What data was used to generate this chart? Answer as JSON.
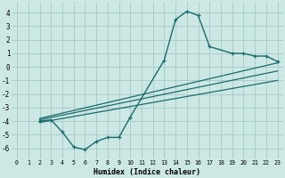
{
  "xlabel": "Humidex (Indice chaleur)",
  "bg_color": "#cce8e4",
  "grid_color": "#aaceca",
  "line_color": "#1a6b6b",
  "xlim": [
    -0.5,
    23.5
  ],
  "ylim": [
    -6.8,
    4.8
  ],
  "xticks": [
    0,
    1,
    2,
    3,
    4,
    5,
    6,
    7,
    8,
    9,
    10,
    11,
    12,
    13,
    14,
    15,
    16,
    17,
    18,
    19,
    20,
    21,
    22,
    23
  ],
  "yticks": [
    -6,
    -5,
    -4,
    -3,
    -2,
    -1,
    0,
    1,
    2,
    3,
    4
  ],
  "curve_x": [
    2,
    3,
    4,
    5,
    6,
    7,
    8,
    9,
    10,
    13,
    14,
    15,
    16,
    17,
    19,
    20,
    21,
    22,
    23
  ],
  "curve_y": [
    -4.0,
    -3.9,
    -4.8,
    -5.9,
    -6.1,
    -5.5,
    -5.2,
    -5.2,
    -3.7,
    0.5,
    3.5,
    4.1,
    3.8,
    1.5,
    1.0,
    1.0,
    0.8,
    0.8,
    0.4
  ],
  "line1_x": [
    2,
    23
  ],
  "line1_y": [
    -3.8,
    0.3
  ],
  "line2_x": [
    2,
    23
  ],
  "line2_y": [
    -3.9,
    -0.3
  ],
  "line3_x": [
    2,
    23
  ],
  "line3_y": [
    -4.1,
    -1.0
  ]
}
